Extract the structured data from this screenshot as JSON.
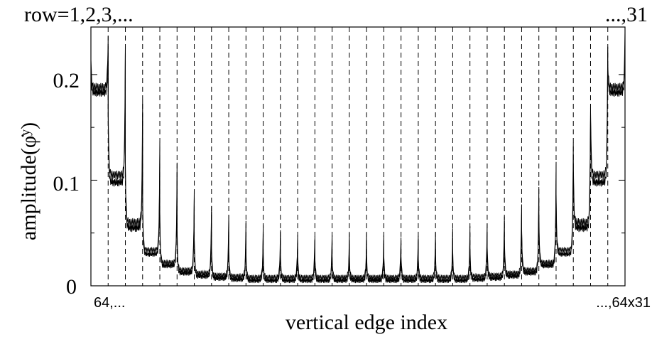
{
  "chart_data": {
    "type": "line",
    "title": "",
    "xlabel": "vertical edge index",
    "ylabel": "amplitude(φ̇ʸ)",
    "ylim": [
      0,
      0.245
    ],
    "y_ticks": [
      "0",
      "0.1",
      "0.2"
    ],
    "x_tick_labels": {
      "start": "64,...",
      "end": "...,64x31"
    },
    "top_annotations": {
      "left": "row=1,2,3,...",
      "right": "...,31"
    },
    "rows": 31,
    "edges_per_row": 64,
    "row_boundary_lines": "dashed",
    "grid": false,
    "legend": "none",
    "series": [
      {
        "row_plateau": [
          0.188,
          0.105,
          0.06,
          0.034,
          0.022,
          0.015,
          0.012,
          0.01,
          0.009,
          0.008,
          0.008,
          0.008,
          0.008,
          0.008,
          0.008,
          0.008,
          0.008,
          0.008,
          0.008,
          0.008,
          0.008,
          0.008,
          0.009,
          0.01,
          0.012,
          0.015,
          0.022,
          0.034,
          0.06,
          0.105,
          0.188
        ],
        "row_edge_peak": [
          0.24,
          0.23,
          0.175,
          0.135,
          0.115,
          0.092,
          0.078,
          0.068,
          0.06,
          0.055,
          0.052,
          0.05,
          0.049,
          0.048,
          0.048,
          0.048,
          0.048,
          0.048,
          0.049,
          0.05,
          0.052,
          0.055,
          0.06,
          0.068,
          0.078,
          0.092,
          0.115,
          0.135,
          0.175,
          0.23,
          0.24
        ]
      },
      {
        "row_plateau": [
          0.183,
          0.098,
          0.055,
          0.03,
          0.019,
          0.012,
          0.009,
          0.007,
          0.006,
          0.005,
          0.005,
          0.005,
          0.005,
          0.005,
          0.005,
          0.005,
          0.005,
          0.005,
          0.005,
          0.005,
          0.005,
          0.005,
          0.006,
          0.007,
          0.009,
          0.012,
          0.019,
          0.03,
          0.055,
          0.098,
          0.183
        ],
        "row_edge_peak": [
          0.23,
          0.22,
          0.165,
          0.125,
          0.105,
          0.085,
          0.07,
          0.06,
          0.053,
          0.048,
          0.045,
          0.043,
          0.042,
          0.041,
          0.041,
          0.041,
          0.041,
          0.041,
          0.042,
          0.043,
          0.045,
          0.048,
          0.053,
          0.06,
          0.07,
          0.085,
          0.105,
          0.125,
          0.165,
          0.22,
          0.23
        ]
      }
    ]
  }
}
